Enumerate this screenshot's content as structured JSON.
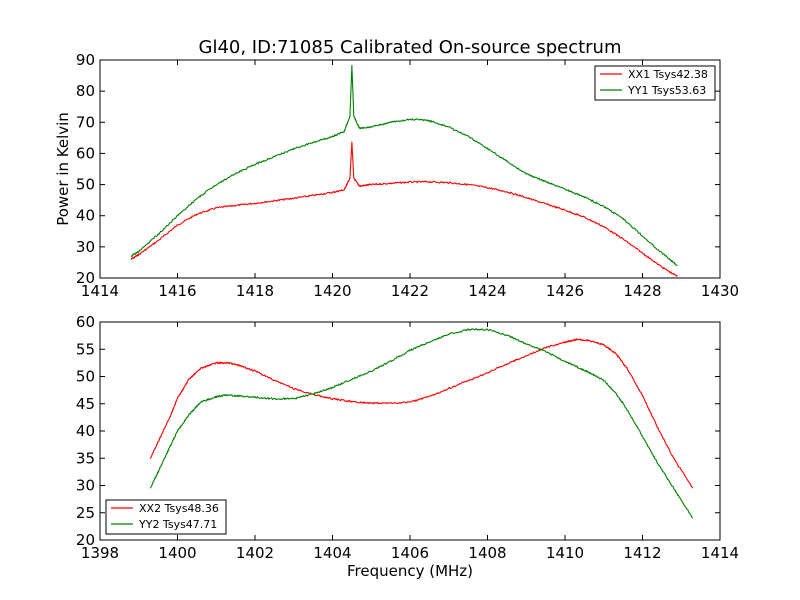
{
  "chart_data": [
    {
      "type": "line",
      "title": "Gl40, ID:71085 Calibrated On-source spectrum",
      "xlabel": "",
      "ylabel": "Power in Kelvin",
      "xlim": [
        1414,
        1430
      ],
      "ylim": [
        20,
        90
      ],
      "xticks": [
        1414,
        1416,
        1418,
        1420,
        1422,
        1424,
        1426,
        1428,
        1430
      ],
      "yticks": [
        20,
        30,
        40,
        50,
        60,
        70,
        80,
        90
      ],
      "grid": false,
      "legend_position": "top-right",
      "series": [
        {
          "name": "XX1 Tsys42.38",
          "color": "#ff0000",
          "x": [
            1414.8,
            1415.0,
            1415.5,
            1416.0,
            1416.5,
            1417.0,
            1417.5,
            1418.0,
            1418.5,
            1419.0,
            1419.5,
            1420.0,
            1420.3,
            1420.45,
            1420.5,
            1420.55,
            1420.7,
            1421.0,
            1421.5,
            1422.0,
            1422.5,
            1423.0,
            1423.5,
            1424.0,
            1424.5,
            1425.0,
            1425.5,
            1426.0,
            1426.5,
            1427.0,
            1427.5,
            1428.0,
            1428.5,
            1428.9
          ],
          "y": [
            26,
            27.5,
            32,
            37,
            40.5,
            42.5,
            43.3,
            44,
            44.8,
            45.6,
            46.5,
            47.5,
            48.3,
            52,
            63.5,
            52,
            49.5,
            50,
            50.4,
            50.8,
            50.9,
            50.6,
            50,
            49,
            47.7,
            45.8,
            43.8,
            41.8,
            39.5,
            36.5,
            32.5,
            28,
            23.5,
            20.5
          ]
        },
        {
          "name": "YY1 Tsys53.63",
          "color": "#008000",
          "x": [
            1414.8,
            1415.0,
            1415.5,
            1416.0,
            1416.5,
            1417.0,
            1417.5,
            1418.0,
            1418.5,
            1419.0,
            1419.5,
            1420.0,
            1420.3,
            1420.45,
            1420.5,
            1420.55,
            1420.7,
            1421.0,
            1421.5,
            1422.0,
            1422.5,
            1423.0,
            1423.5,
            1424.0,
            1424.5,
            1425.0,
            1425.5,
            1426.0,
            1426.5,
            1427.0,
            1427.5,
            1428.0,
            1428.5,
            1428.9
          ],
          "y": [
            27,
            28.5,
            34,
            40,
            45.5,
            50,
            53.5,
            56.5,
            59,
            61.5,
            63.5,
            65.5,
            67,
            72,
            88,
            72,
            68,
            68.5,
            70,
            71,
            70.5,
            68.5,
            65.5,
            61.5,
            57.5,
            53.5,
            51,
            48.5,
            46,
            43,
            39,
            33.5,
            28,
            24
          ]
        }
      ]
    },
    {
      "type": "line",
      "title": "",
      "xlabel": "Frequency (MHz)",
      "ylabel": "",
      "xlim": [
        1398,
        1414
      ],
      "ylim": [
        20,
        60
      ],
      "xticks": [
        1398,
        1400,
        1402,
        1404,
        1406,
        1408,
        1410,
        1412,
        1414
      ],
      "yticks": [
        20,
        25,
        30,
        35,
        40,
        45,
        50,
        55,
        60
      ],
      "grid": false,
      "legend_position": "bottom-left",
      "series": [
        {
          "name": "XX2 Tsys48.36",
          "color": "#ff0000",
          "x": [
            1399.3,
            1399.5,
            1399.8,
            1400.0,
            1400.3,
            1400.6,
            1401.0,
            1401.3,
            1401.6,
            1402.0,
            1402.5,
            1403.0,
            1403.5,
            1404.0,
            1404.5,
            1405.0,
            1405.5,
            1406.0,
            1406.5,
            1407.0,
            1407.5,
            1408.0,
            1408.5,
            1409.0,
            1409.5,
            1410.0,
            1410.3,
            1410.6,
            1411.0,
            1411.3,
            1411.6,
            1412.0,
            1412.4,
            1412.8,
            1413.3
          ],
          "y": [
            35,
            38,
            42.5,
            46,
            49.5,
            51.5,
            52.5,
            52.5,
            52,
            51,
            49.3,
            47.8,
            46.7,
            45.9,
            45.4,
            45.1,
            45.1,
            45.3,
            46.3,
            47.8,
            49.2,
            50.7,
            52.3,
            53.8,
            55.3,
            56.3,
            56.8,
            56.6,
            55.8,
            54.3,
            51.5,
            46.5,
            40.5,
            35,
            29.5
          ]
        },
        {
          "name": "YY2 Tsys47.71",
          "color": "#008000",
          "x": [
            1399.3,
            1399.5,
            1399.8,
            1400.0,
            1400.3,
            1400.6,
            1401.0,
            1401.3,
            1401.6,
            1402.0,
            1402.5,
            1403.0,
            1403.5,
            1404.0,
            1404.5,
            1405.0,
            1405.5,
            1406.0,
            1406.5,
            1407.0,
            1407.5,
            1408.0,
            1408.5,
            1409.0,
            1409.5,
            1410.0,
            1410.3,
            1410.6,
            1411.0,
            1411.3,
            1411.6,
            1412.0,
            1412.4,
            1412.8,
            1413.3
          ],
          "y": [
            29.5,
            32.5,
            37,
            40,
            43,
            45.3,
            46.3,
            46.6,
            46.4,
            46.2,
            45.9,
            45.9,
            46.8,
            48,
            49.5,
            51,
            52.8,
            54.8,
            56.3,
            57.8,
            58.6,
            58.6,
            57.6,
            56,
            54.6,
            52.8,
            51.8,
            50.8,
            49.3,
            47,
            44,
            39,
            34,
            29.5,
            24
          ]
        }
      ]
    }
  ]
}
